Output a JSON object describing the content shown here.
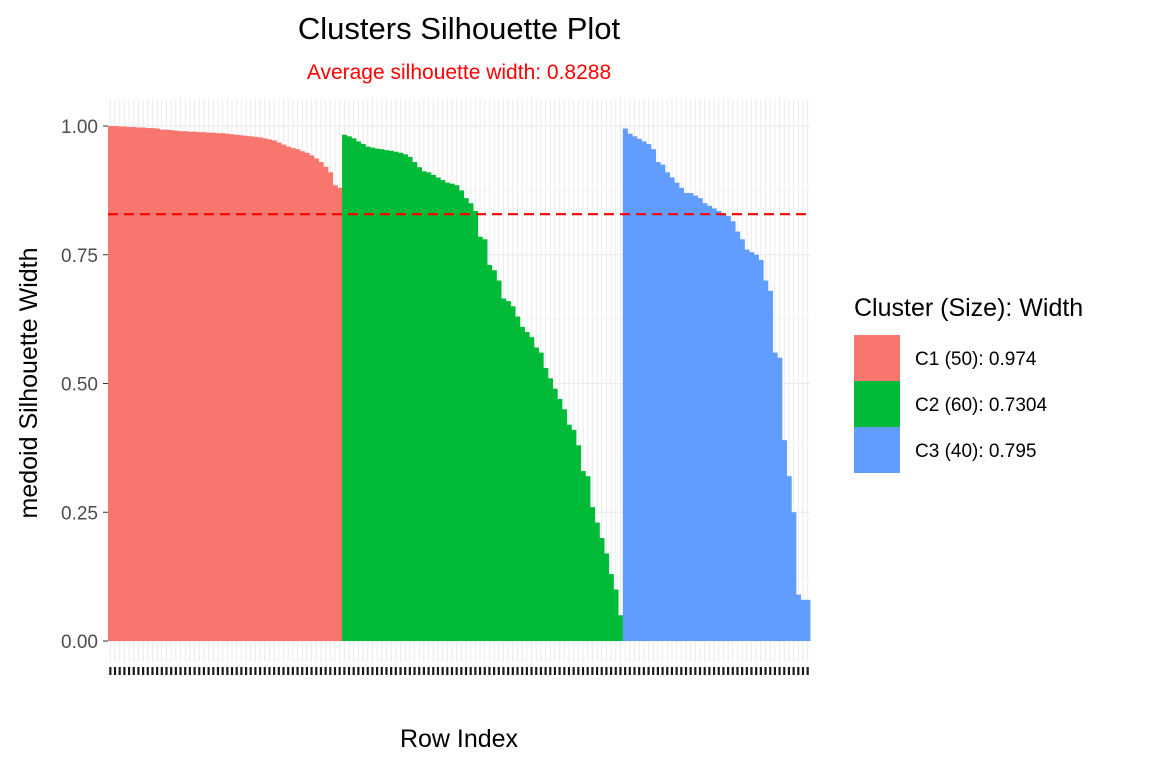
{
  "chart_data": {
    "type": "bar",
    "title": "Clusters Silhouette Plot",
    "subtitle": "Average silhouette width: 0.8288",
    "xlabel": "Row Index",
    "ylabel": "medoid Silhouette Width",
    "ylim": [
      0,
      1.03
    ],
    "yticks": [
      "0.00",
      "0.25",
      "0.50",
      "0.75",
      "1.00"
    ],
    "grid": true,
    "average_line": 0.8288,
    "colors": {
      "subtitle": "#ff0000",
      "average_line": "#ff0000"
    },
    "legend": {
      "title": "Cluster (Size): Width",
      "placement": "right",
      "entries": [
        {
          "label": "C1 (50): 0.974",
          "color": "#f8766d"
        },
        {
          "label": "C2 (60): 0.7304",
          "color": "#00ba38"
        },
        {
          "label": "C3 (40): 0.795",
          "color": "#619cff"
        }
      ]
    },
    "series": [
      {
        "name": "C1 (50): 0.974",
        "color": "#f8766d",
        "values": [
          1.0,
          1.0,
          0.999,
          0.999,
          0.998,
          0.998,
          0.997,
          0.997,
          0.996,
          0.996,
          0.995,
          0.993,
          0.993,
          0.992,
          0.991,
          0.99,
          0.99,
          0.989,
          0.989,
          0.988,
          0.988,
          0.987,
          0.987,
          0.986,
          0.986,
          0.985,
          0.984,
          0.983,
          0.982,
          0.981,
          0.98,
          0.979,
          0.978,
          0.976,
          0.974,
          0.972,
          0.968,
          0.964,
          0.96,
          0.957,
          0.955,
          0.951,
          0.948,
          0.943,
          0.937,
          0.93,
          0.921,
          0.91,
          0.885,
          0.88
        ]
      },
      {
        "name": "C2 (60): 0.7304",
        "color": "#00ba38",
        "values": [
          0.983,
          0.98,
          0.976,
          0.97,
          0.965,
          0.96,
          0.958,
          0.956,
          0.955,
          0.953,
          0.952,
          0.95,
          0.948,
          0.945,
          0.94,
          0.93,
          0.92,
          0.912,
          0.91,
          0.905,
          0.9,
          0.895,
          0.89,
          0.888,
          0.885,
          0.875,
          0.86,
          0.85,
          0.835,
          0.785,
          0.78,
          0.73,
          0.72,
          0.7,
          0.665,
          0.66,
          0.65,
          0.63,
          0.61,
          0.6,
          0.59,
          0.57,
          0.56,
          0.53,
          0.51,
          0.49,
          0.47,
          0.45,
          0.42,
          0.41,
          0.38,
          0.33,
          0.32,
          0.26,
          0.23,
          0.2,
          0.17,
          0.13,
          0.1,
          0.05
        ]
      },
      {
        "name": "C3 (40): 0.795",
        "color": "#619cff",
        "values": [
          0.995,
          0.985,
          0.98,
          0.975,
          0.97,
          0.965,
          0.955,
          0.93,
          0.925,
          0.91,
          0.9,
          0.89,
          0.88,
          0.87,
          0.87,
          0.865,
          0.86,
          0.85,
          0.845,
          0.84,
          0.835,
          0.83,
          0.825,
          0.815,
          0.795,
          0.78,
          0.76,
          0.755,
          0.75,
          0.74,
          0.7,
          0.68,
          0.56,
          0.55,
          0.39,
          0.32,
          0.25,
          0.09,
          0.08,
          0.08
        ]
      }
    ]
  }
}
